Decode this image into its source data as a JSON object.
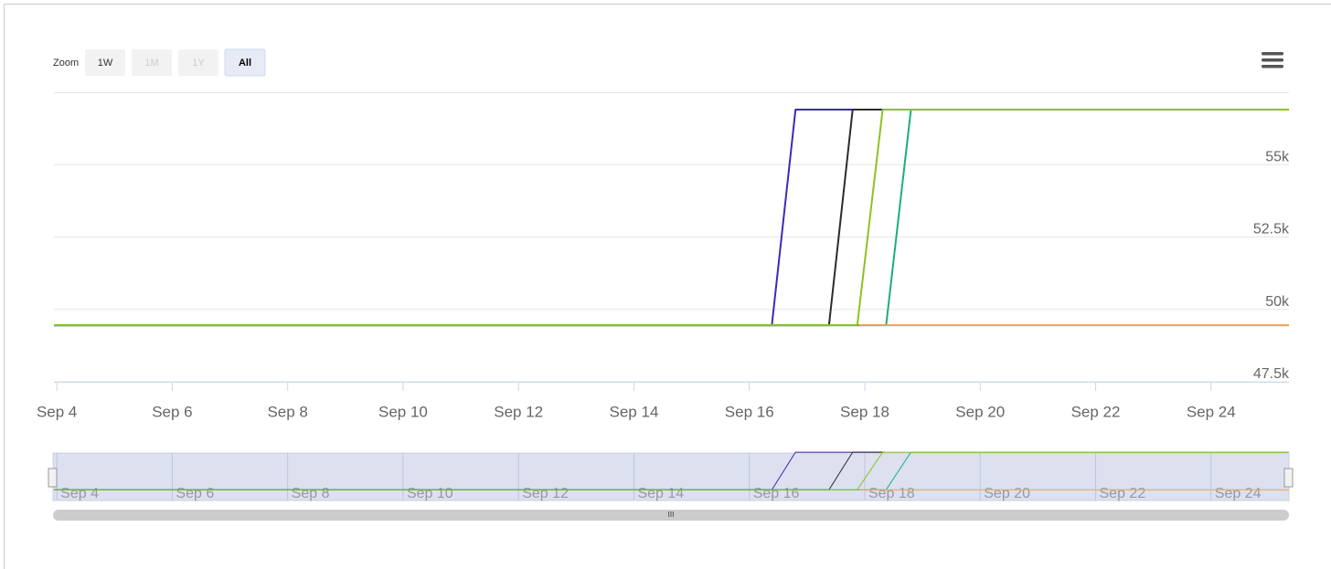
{
  "range_selector": {
    "label": "Zoom",
    "buttons": [
      "1W",
      "1M",
      "1Y",
      "All"
    ]
  },
  "chart_data": {
    "type": "line",
    "xlim": [
      3.95,
      25.35
    ],
    "ylim": [
      47500,
      57500
    ],
    "xticks": [
      {
        "value": 4,
        "label": "Sep 4"
      },
      {
        "value": 6,
        "label": "Sep 6"
      },
      {
        "value": 8,
        "label": "Sep 8"
      },
      {
        "value": 10,
        "label": "Sep 10"
      },
      {
        "value": 12,
        "label": "Sep 12"
      },
      {
        "value": 14,
        "label": "Sep 14"
      },
      {
        "value": 16,
        "label": "Sep 16"
      },
      {
        "value": 18,
        "label": "Sep 18"
      },
      {
        "value": 20,
        "label": "Sep 20"
      },
      {
        "value": 22,
        "label": "Sep 22"
      },
      {
        "value": 24,
        "label": "Sep 24"
      }
    ],
    "yticks": [
      {
        "value": 47500,
        "label": "47.5k"
      },
      {
        "value": 50000,
        "label": "50k"
      },
      {
        "value": 52500,
        "label": "52.5k"
      },
      {
        "value": 55000,
        "label": "55k"
      }
    ],
    "grid": true,
    "series": [
      {
        "color": "#3a2bb5",
        "x": [
          3.95,
          16.39,
          16.8,
          18.3
        ],
        "values": [
          49450,
          49450,
          56900,
          56900
        ]
      },
      {
        "color": "#2b2b2b",
        "x": [
          3.95,
          17.38,
          17.79,
          18.35
        ],
        "values": [
          49450,
          49450,
          56900,
          56900
        ]
      },
      {
        "color": "#1aae7a",
        "x": [
          3.95,
          18.37,
          18.8,
          25.35
        ],
        "values": [
          49450,
          49450,
          56900,
          56900
        ]
      },
      {
        "color": "#8bc31f",
        "x": [
          3.95,
          17.87,
          18.31,
          25.35
        ],
        "values": [
          49450,
          49450,
          56900,
          56900
        ]
      },
      {
        "color": "#f0a050",
        "x": [
          17.9,
          25.35
        ],
        "values": [
          49450,
          49450
        ]
      }
    ]
  }
}
